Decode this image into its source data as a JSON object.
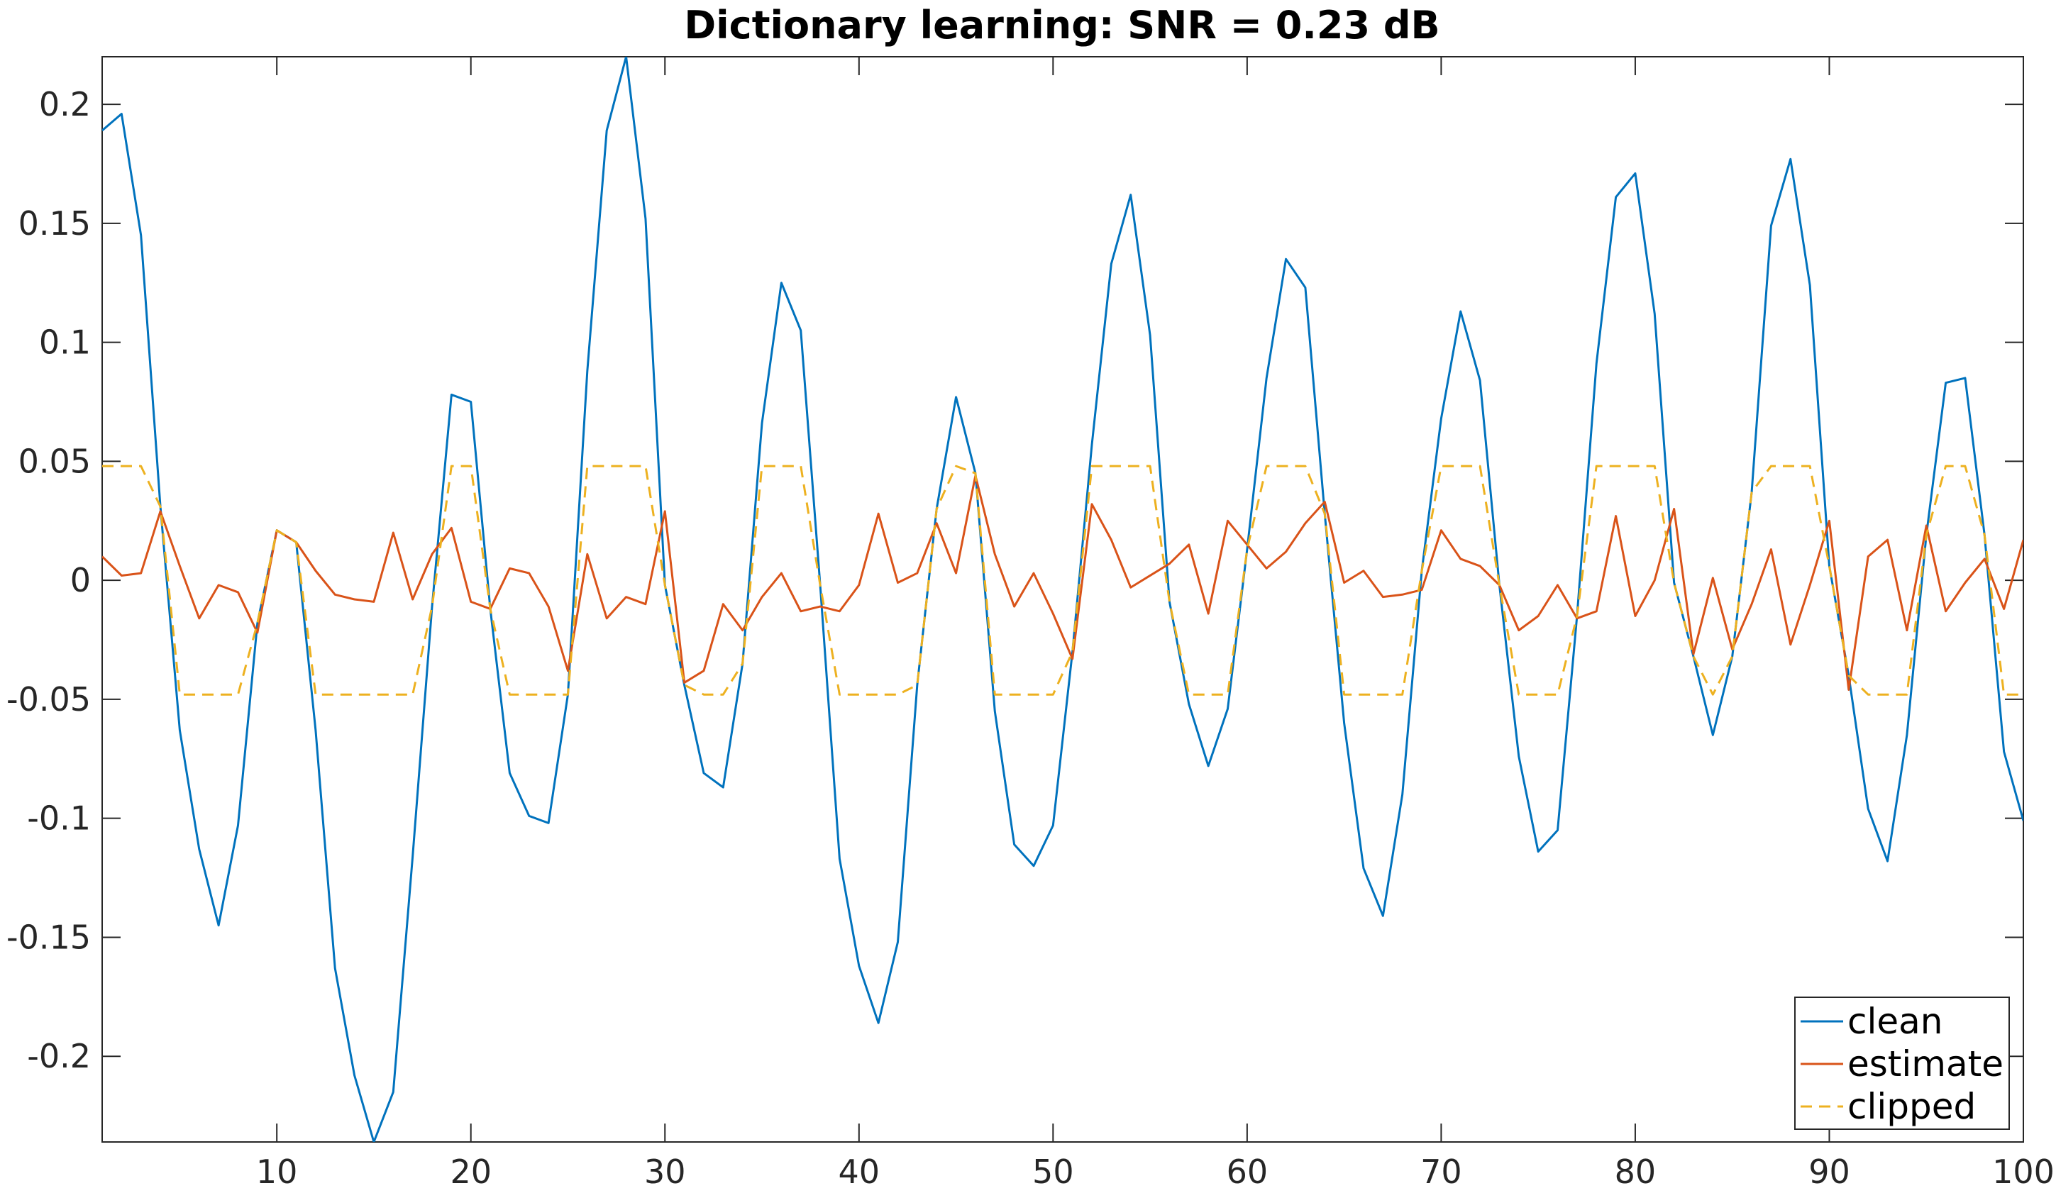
{
  "chart_data": {
    "type": "line",
    "title": "Dictionary learning: SNR = 0.23 dB",
    "xlabel": "",
    "ylabel": "",
    "xlim": [
      1,
      100
    ],
    "ylim": [
      -0.236,
      0.22
    ],
    "grid": false,
    "legend_position": "bottom-right",
    "x_ticks": [
      10,
      20,
      30,
      40,
      50,
      60,
      70,
      80,
      90,
      100
    ],
    "x_tick_labels": [
      "10",
      "20",
      "30",
      "40",
      "50",
      "60",
      "70",
      "80",
      "90",
      "100"
    ],
    "y_ticks": [
      0.2,
      0.15,
      0.1,
      0.05,
      0,
      -0.05,
      -0.1,
      -0.15,
      -0.2
    ],
    "y_tick_labels": [
      "0.2",
      "0.15",
      "0.1",
      "0.05",
      "0",
      "-0.05",
      "-0.1",
      "-0.15",
      "-0.2"
    ],
    "x": [
      1,
      2,
      3,
      4,
      5,
      6,
      7,
      8,
      9,
      10,
      11,
      12,
      13,
      14,
      15,
      16,
      17,
      18,
      19,
      20,
      21,
      22,
      23,
      24,
      25,
      26,
      27,
      28,
      29,
      30,
      31,
      32,
      33,
      34,
      35,
      36,
      37,
      38,
      39,
      40,
      41,
      42,
      43,
      44,
      45,
      46,
      47,
      48,
      49,
      50,
      51,
      52,
      53,
      54,
      55,
      56,
      57,
      58,
      59,
      60,
      61,
      62,
      63,
      64,
      65,
      66,
      67,
      68,
      69,
      70,
      71,
      72,
      73,
      74,
      75,
      76,
      77,
      78,
      79,
      80,
      81,
      82,
      83,
      84,
      85,
      86,
      87,
      88,
      89,
      90,
      91,
      92,
      93,
      94,
      95,
      96,
      97,
      98,
      99,
      100
    ],
    "series": [
      {
        "name": "clean",
        "color": "#0072BD",
        "style": "solid",
        "values": [
          0.189,
          0.196,
          0.145,
          0.031,
          -0.063,
          -0.113,
          -0.145,
          -0.103,
          -0.018,
          0.021,
          0.016,
          -0.063,
          -0.163,
          -0.208,
          -0.236,
          -0.215,
          -0.116,
          -0.011,
          0.078,
          0.075,
          -0.012,
          -0.081,
          -0.099,
          -0.102,
          -0.048,
          0.088,
          0.189,
          0.22,
          0.152,
          -0.002,
          -0.044,
          -0.081,
          -0.087,
          -0.035,
          0.066,
          0.125,
          0.105,
          -0.002,
          -0.117,
          -0.162,
          -0.186,
          -0.152,
          -0.044,
          0.03,
          0.077,
          0.045,
          -0.055,
          -0.111,
          -0.12,
          -0.103,
          -0.03,
          0.057,
          0.133,
          0.162,
          0.103,
          -0.009,
          -0.052,
          -0.078,
          -0.054,
          0.013,
          0.085,
          0.135,
          0.123,
          0.028,
          -0.06,
          -0.121,
          -0.141,
          -0.09,
          0.004,
          0.068,
          0.113,
          0.084,
          -0.002,
          -0.074,
          -0.114,
          -0.105,
          -0.015,
          0.091,
          0.161,
          0.171,
          0.112,
          -0.001,
          -0.032,
          -0.065,
          -0.032,
          0.037,
          0.149,
          0.177,
          0.124,
          0.006,
          -0.04,
          -0.096,
          -0.118,
          -0.065,
          0.019,
          0.083,
          0.085,
          0.019,
          -0.072,
          -0.101
        ]
      },
      {
        "name": "estimate",
        "color": "#D95319",
        "style": "solid",
        "values": [
          0.01,
          0.002,
          0.003,
          0.029,
          0.006,
          -0.016,
          -0.002,
          -0.005,
          -0.022,
          0.021,
          0.016,
          0.004,
          -0.006,
          -0.008,
          -0.009,
          0.02,
          -0.008,
          0.011,
          0.022,
          -0.009,
          -0.012,
          0.005,
          0.003,
          -0.011,
          -0.038,
          0.011,
          -0.016,
          -0.007,
          -0.01,
          0.029,
          -0.043,
          -0.038,
          -0.01,
          -0.021,
          -0.007,
          0.003,
          -0.013,
          -0.011,
          -0.013,
          -0.002,
          0.028,
          -0.001,
          0.003,
          0.024,
          0.003,
          0.044,
          0.011,
          -0.011,
          0.003,
          -0.014,
          -0.033,
          0.032,
          0.017,
          -0.003,
          0.002,
          0.007,
          0.015,
          -0.014,
          0.025,
          0.015,
          0.005,
          0.012,
          0.024,
          0.033,
          -0.001,
          0.004,
          -0.007,
          -0.006,
          -0.004,
          0.021,
          0.009,
          0.006,
          -0.002,
          -0.021,
          -0.015,
          -0.002,
          -0.016,
          -0.013,
          0.027,
          -0.015,
          0,
          0.03,
          -0.031,
          0.001,
          -0.029,
          -0.01,
          0.013,
          -0.027,
          -0.002,
          0.025,
          -0.046,
          0.01,
          0.017,
          -0.021,
          0.023,
          -0.013,
          -0.001,
          0.009,
          -0.012,
          0.017
        ]
      },
      {
        "name": "clipped",
        "color": "#EDB120",
        "style": "dashed",
        "values": [
          0.048,
          0.048,
          0.048,
          0.031,
          -0.048,
          -0.048,
          -0.048,
          -0.048,
          -0.018,
          0.021,
          0.016,
          -0.048,
          -0.048,
          -0.048,
          -0.048,
          -0.048,
          -0.048,
          -0.011,
          0.048,
          0.048,
          -0.012,
          -0.048,
          -0.048,
          -0.048,
          -0.048,
          0.048,
          0.048,
          0.048,
          0.048,
          -0.002,
          -0.044,
          -0.048,
          -0.048,
          -0.035,
          0.048,
          0.048,
          0.048,
          -0.002,
          -0.048,
          -0.048,
          -0.048,
          -0.048,
          -0.044,
          0.03,
          0.048,
          0.045,
          -0.048,
          -0.048,
          -0.048,
          -0.048,
          -0.03,
          0.048,
          0.048,
          0.048,
          0.048,
          -0.009,
          -0.048,
          -0.048,
          -0.048,
          0.013,
          0.048,
          0.048,
          0.048,
          0.028,
          -0.048,
          -0.048,
          -0.048,
          -0.048,
          0.004,
          0.048,
          0.048,
          0.048,
          -0.002,
          -0.048,
          -0.048,
          -0.048,
          -0.015,
          0.048,
          0.048,
          0.048,
          0.048,
          -0.001,
          -0.032,
          -0.048,
          -0.032,
          0.037,
          0.048,
          0.048,
          0.048,
          0.006,
          -0.04,
          -0.048,
          -0.048,
          -0.048,
          0.019,
          0.048,
          0.048,
          0.019,
          -0.048,
          -0.048
        ]
      }
    ]
  }
}
